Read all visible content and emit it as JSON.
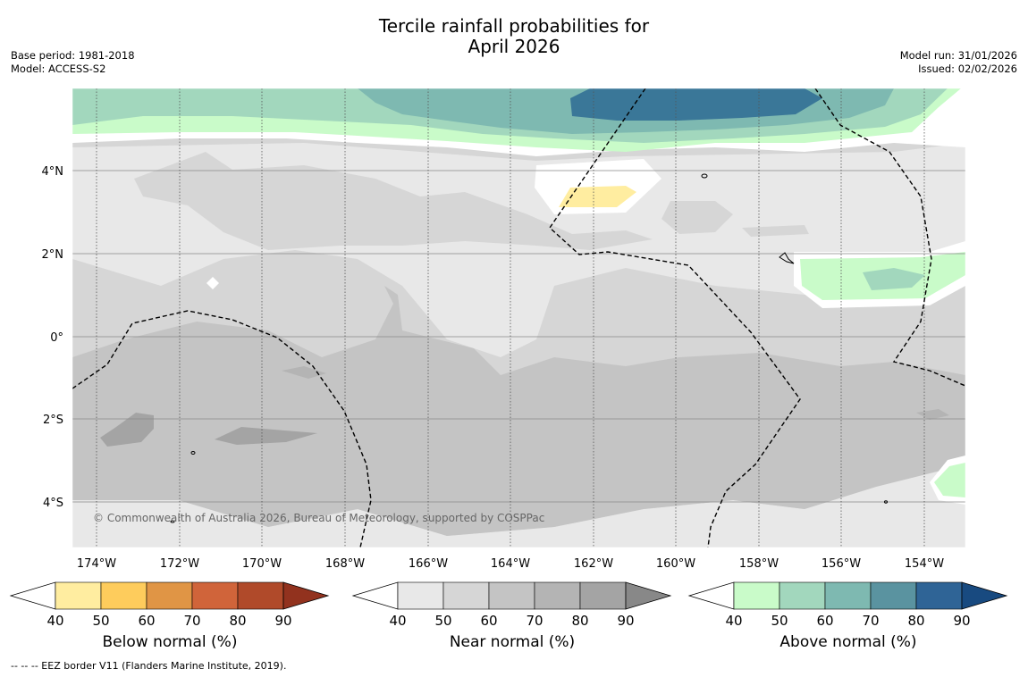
{
  "title": {
    "line1": "Tercile rainfall probabilities for",
    "line2": "April 2026"
  },
  "meta": {
    "base_period": "Base period: 1981-2018",
    "model": "Model: ACCESS-S2",
    "model_run": "Model run: 31/01/2026",
    "issued": "Issued: 02/02/2026"
  },
  "map": {
    "lat_labels": [
      "4°N",
      "2°N",
      "0°",
      "2°S",
      "4°S"
    ],
    "lon_labels": [
      "174°W",
      "172°W",
      "170°W",
      "168°W",
      "166°W",
      "164°W",
      "162°W",
      "160°W",
      "158°W",
      "156°W",
      "154°W"
    ],
    "copyright": "© Commonwealth of Australia 2026, Bureau of Meteorology, supported by COSPPac"
  },
  "colorbars": [
    {
      "label": "Below normal (%)",
      "ticks": [
        "40",
        "50",
        "60",
        "70",
        "80",
        "90"
      ],
      "colors": [
        "#ffffff",
        "#ffeda0",
        "#fecc5c",
        "#e09545",
        "#d0643a",
        "#b04a2a",
        "#92321e"
      ]
    },
    {
      "label": "Near normal (%)",
      "ticks": [
        "40",
        "50",
        "60",
        "70",
        "80",
        "90"
      ],
      "colors": [
        "#ffffff",
        "#e8e8e8",
        "#d6d6d6",
        "#c4c4c4",
        "#b4b4b4",
        "#a4a4a4",
        "#888888"
      ]
    },
    {
      "label": "Above normal (%)",
      "ticks": [
        "40",
        "50",
        "60",
        "70",
        "80",
        "90"
      ],
      "colors": [
        "#ffffff",
        "#c9fbc9",
        "#a2d7bd",
        "#7eb9b1",
        "#5a93a0",
        "#2f6496",
        "#184a80"
      ]
    }
  ],
  "footnote": "--  --  -- EEZ border V11 (Flanders Marine Institute, 2019).",
  "colors": {
    "grid": "#555555",
    "eez": "#000000"
  }
}
